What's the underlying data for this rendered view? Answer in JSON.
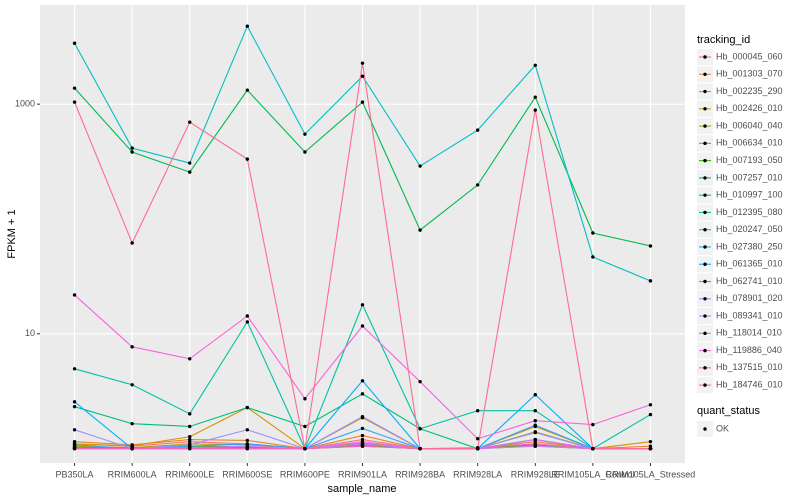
{
  "chart_data": {
    "type": "line",
    "x_label": "sample_name",
    "y_label": "FPKM + 1",
    "log_y": true,
    "grid": true,
    "ylim": [
      0.75,
      7300
    ],
    "yticks": [
      10,
      1000
    ],
    "categories": [
      "PB350LA",
      "RRIM600LA",
      "RRIM600LE",
      "RRIM600SE",
      "RRIM600PE",
      "RRIM901LA",
      "RRIM928BA",
      "RRIM928LA",
      "RRIM928LE",
      "RRIM105LA_Control",
      "RRIM105LA_Stressed"
    ],
    "legend_title": "tracking_id",
    "legend_position": "right",
    "point_legend_title": "quant_status",
    "point_legend_label": "OK",
    "point_color": "#000000",
    "series": [
      {
        "name": "Hb_000045_060",
        "color": "#F8766D",
        "values": [
          1.1,
          1.05,
          1.15,
          1.1,
          1,
          1.2,
          1,
          1,
          1.1,
          1,
          1
        ]
      },
      {
        "name": "Hb_001303_070",
        "color": "#EA8331",
        "values": [
          1.15,
          1.08,
          1.2,
          1.18,
          1,
          1.3,
          1,
          1,
          1.15,
          1,
          1.05
        ]
      },
      {
        "name": "Hb_002235_290",
        "color": "#D89000",
        "values": [
          1.1,
          1.06,
          1.27,
          2.28,
          1,
          1.86,
          1,
          1,
          1.56,
          1,
          1.15
        ]
      },
      {
        "name": "Hb_002426_010",
        "color": "#C09B00",
        "values": [
          1.05,
          1.02,
          1.1,
          1.08,
          1,
          1.12,
          1,
          1,
          1.1,
          1,
          1
        ]
      },
      {
        "name": "Hb_006040_040",
        "color": "#A3A500",
        "values": [
          1,
          1,
          1.05,
          1.03,
          1,
          1.08,
          1,
          1,
          1.4,
          1,
          1
        ]
      },
      {
        "name": "Hb_006634_010",
        "color": "#7CAE00",
        "values": [
          1.02,
          1,
          1.03,
          1.02,
          1,
          1.05,
          1,
          1,
          1.05,
          1,
          1
        ]
      },
      {
        "name": "Hb_007193_050",
        "color": "#39B600",
        "values": [
          1.03,
          1.01,
          1.05,
          1.04,
          1,
          1.06,
          1,
          1,
          1.08,
          1,
          1
        ]
      },
      {
        "name": "Hb_007257_010",
        "color": "#00BB4E",
        "values": [
          1378,
          383,
          256,
          1324,
          383,
          1041,
          80,
          198,
          1150,
          75.5,
          58.2
        ]
      },
      {
        "name": "Hb_010997_100",
        "color": "#00BF7D",
        "values": [
          2.32,
          1.65,
          1.56,
          2.28,
          1.56,
          3.0,
          1.49,
          1,
          1.2,
          1,
          1
        ]
      },
      {
        "name": "Hb_012395_080",
        "color": "#00C1A3",
        "values": [
          4.96,
          3.6,
          2.01,
          12.7,
          1,
          17.9,
          1.49,
          2.14,
          2.14,
          1,
          1.98
        ]
      },
      {
        "name": "Hb_020247_050",
        "color": "#00BFC4",
        "values": [
          3390,
          414,
          307,
          4770,
          548,
          1750,
          289,
          594,
          2180,
          46.7,
          28.9
        ]
      },
      {
        "name": "Hb_027380_250",
        "color": "#00BAE0",
        "values": [
          1.02,
          1,
          1.02,
          1.03,
          1,
          1.1,
          1,
          1,
          1.2,
          1,
          1
        ]
      },
      {
        "name": "Hb_061365_010",
        "color": "#00B0F6",
        "values": [
          2.56,
          1,
          1,
          1,
          1,
          3.9,
          1,
          1,
          2.95,
          1,
          1
        ]
      },
      {
        "name": "Hb_062741_010",
        "color": "#35A2FF",
        "values": [
          1.08,
          1,
          1.05,
          1.1,
          1,
          1.5,
          1,
          1,
          1.6,
          1,
          1
        ]
      },
      {
        "name": "Hb_078901_020",
        "color": "#9590FF",
        "values": [
          1.46,
          1,
          1.08,
          1.46,
          1,
          1.9,
          1,
          1,
          1.38,
          1,
          1
        ]
      },
      {
        "name": "Hb_089341_010",
        "color": "#C77CFF",
        "values": [
          1.01,
          1,
          1.02,
          1.05,
          1,
          1.1,
          1,
          1,
          1.05,
          1,
          1
        ]
      },
      {
        "name": "Hb_118014_010",
        "color": "#E76BF3",
        "values": [
          1,
          1,
          1,
          1,
          1,
          1.15,
          1,
          1,
          1.2,
          1,
          1
        ]
      },
      {
        "name": "Hb_119886_040",
        "color": "#FA62DB",
        "values": [
          21.8,
          7.7,
          6.06,
          14.3,
          2.72,
          11.7,
          3.83,
          1.22,
          1.75,
          1.62,
          2.41
        ]
      },
      {
        "name": "Hb_137515_010",
        "color": "#FF62BC",
        "values": [
          1,
          1,
          1,
          1,
          1,
          1.05,
          1,
          1.02,
          1.1,
          1,
          1
        ]
      },
      {
        "name": "Hb_184746_010",
        "color": "#FF6C91",
        "values": [
          1041,
          61.8,
          697,
          332,
          1,
          2275,
          1,
          1,
          887,
          1,
          1
        ]
      }
    ]
  }
}
